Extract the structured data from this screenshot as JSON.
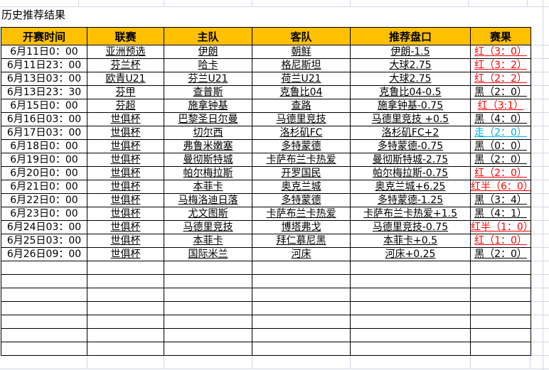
{
  "title": "历史推荐结果",
  "colors": {
    "header_bg": "#ffc000",
    "result_red": "#ff0000",
    "result_walk_blue": "#00b0f0",
    "result_black": "#000000",
    "gridline": "#d0d7e5",
    "table_border": "#000000"
  },
  "table": {
    "headers": [
      "开赛时间",
      "联赛",
      "主队",
      "客队",
      "推荐盘口",
      "赛果"
    ],
    "rows": [
      {
        "time": "6月11日0：00",
        "league": "亚洲预选",
        "home": "伊朗",
        "away": "朝鲜",
        "handicap": "伊朗-1.5",
        "result": "红（3：0）",
        "result_color": "red"
      },
      {
        "time": "6月11日23：00",
        "league": "芬兰杯",
        "home": "哈卡",
        "away": "格尼斯坦",
        "handicap": "大球2.75",
        "result": "红（3：2）",
        "result_color": "red"
      },
      {
        "time": "6月13日03：00",
        "league": "欧青U21",
        "home": "芬兰U21",
        "away": "荷兰U21",
        "handicap": "大球2.75",
        "result": "红（2：2）",
        "result_color": "red"
      },
      {
        "time": "6月13日23：30",
        "league": "芬甲",
        "home": "查普斯",
        "away": "克鲁比04",
        "handicap": "克鲁比04-0.5",
        "result": "黑（2：0）",
        "result_color": "black"
      },
      {
        "time": "6月15日0：00",
        "league": "芬超",
        "home": "施拿钟基",
        "away": "查路",
        "handicap": "施拿钟基-0.75",
        "result": "红（3:1）",
        "result_color": "red"
      },
      {
        "time": "6月16日03：00",
        "league": "世俱杯",
        "home": "巴黎圣日尔曼",
        "away": "马德里竞技",
        "handicap": "马德里竞技 +0.5",
        "result": "黑（4：0）",
        "result_color": "black"
      },
      {
        "time": "6月17日03：00",
        "league": "世俱杯",
        "home": "切尔西",
        "away": "洛杉矶FC",
        "handicap": "洛杉矶FC+2",
        "result": "走（2：0）",
        "result_color": "blue"
      },
      {
        "time": "6月18日0：00",
        "league": "世俱杯",
        "home": "弗鲁米嫩塞",
        "away": "多特蒙德",
        "handicap": "多特蒙德-0.75",
        "result": "黑（0：0）",
        "result_color": "black"
      },
      {
        "time": "6月19日0：00",
        "league": "世俱杯",
        "home": "曼彻斯特城",
        "away": "卡萨布兰卡热爱",
        "handicap": "曼彻斯特城-2.75",
        "result": "黑（2：0）",
        "result_color": "black"
      },
      {
        "time": "6月20日0：00",
        "league": "世俱杯",
        "home": "帕尔梅拉斯",
        "away": "开罗国民",
        "handicap": "帕尔梅拉斯-0.75",
        "result": "红（2：0）",
        "result_color": "red"
      },
      {
        "time": "6月21日0：00",
        "league": "世俱杯",
        "home": "本菲卡",
        "away": "奥克兰城",
        "handicap": "奥克兰城+6.25",
        "result": "红半（6：0）",
        "result_color": "red"
      },
      {
        "time": "6月22日0：00",
        "league": "世俱杯",
        "home": "马梅洛迪日落",
        "away": "多特蒙德",
        "handicap": "多特蒙德-1.25",
        "result": "黑（3：4）",
        "result_color": "black"
      },
      {
        "time": "6月23日0：00",
        "league": "世俱杯",
        "home": "尤文图斯",
        "away": "卡萨布兰卡热爱",
        "handicap": "卡萨布兰卡热爱+1.5",
        "result": "黑（4：1）",
        "result_color": "black"
      },
      {
        "time": "6月24日03：00",
        "league": "世俱杯",
        "home": "马德里竞技",
        "away": "博塔弗戈",
        "handicap": "马德里竞技-0.75",
        "result": "红半（1：0）",
        "result_color": "red"
      },
      {
        "time": "6月25日03：00",
        "league": "世俱杯",
        "home": "本菲卡",
        "away": "拜仁慕尼黑",
        "handicap": "本菲卡+0.5",
        "result": "红（1：0）",
        "result_color": "red"
      },
      {
        "time": "6月26日09：00",
        "league": "世俱杯",
        "home": "国际米兰",
        "away": "河床",
        "handicap": "河床+0.25",
        "result": "黑（2：0）",
        "result_color": "black"
      }
    ],
    "empty_row_count": 7
  }
}
